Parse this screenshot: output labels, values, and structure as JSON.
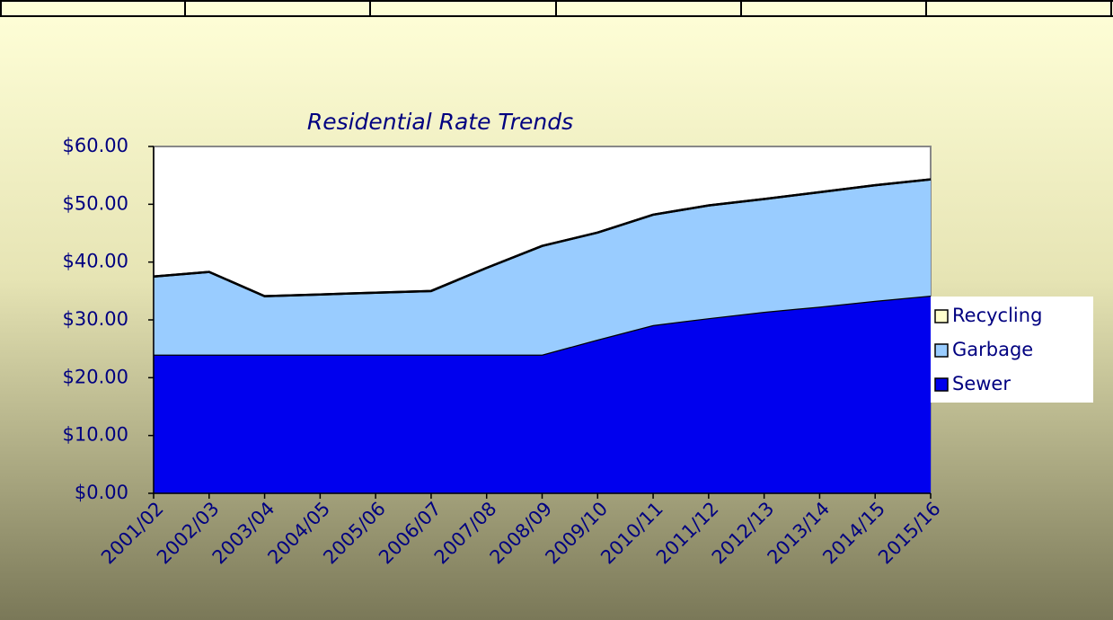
{
  "chart_data": {
    "type": "stacked-area",
    "title": "Residential Rate Trends",
    "categories": [
      "2001/02",
      "2002/03",
      "2003/04",
      "2004/05",
      "2005/06",
      "2006/07",
      "2007/08",
      "2008/09",
      "2009/10",
      "2010/11",
      "2011/12",
      "2012/13",
      "2013/14",
      "2014/15",
      "2015/16"
    ],
    "series": [
      {
        "name": "Sewer",
        "color": "#0000ee",
        "values": [
          24,
          24,
          24,
          24,
          24,
          24,
          24,
          24,
          26.6,
          29.1,
          30.3,
          31.4,
          32.3,
          33.3,
          34.2
        ]
      },
      {
        "name": "Garbage",
        "color": "#99ccff",
        "values": [
          13.5,
          14.3,
          10.1,
          10.4,
          10.7,
          11.0,
          15.0,
          18.8,
          18.5,
          19.1,
          19.5,
          19.5,
          19.8,
          20.0,
          20.1
        ]
      },
      {
        "name": "Recycling",
        "color": "#ffffcc",
        "values": [
          0,
          0,
          0,
          0,
          0,
          0,
          0,
          0,
          0,
          0,
          0,
          0,
          0,
          0,
          0
        ]
      }
    ],
    "ylim": [
      0,
      60
    ],
    "yticks": [
      {
        "value": 0,
        "label": "$0.00"
      },
      {
        "value": 10,
        "label": "$10.00"
      },
      {
        "value": 20,
        "label": "$20.00"
      },
      {
        "value": 30,
        "label": "$30.00"
      },
      {
        "value": 40,
        "label": "$40.00"
      },
      {
        "value": 50,
        "label": "$50.00"
      },
      {
        "value": 60,
        "label": "$60.00"
      }
    ],
    "legend": "right"
  }
}
